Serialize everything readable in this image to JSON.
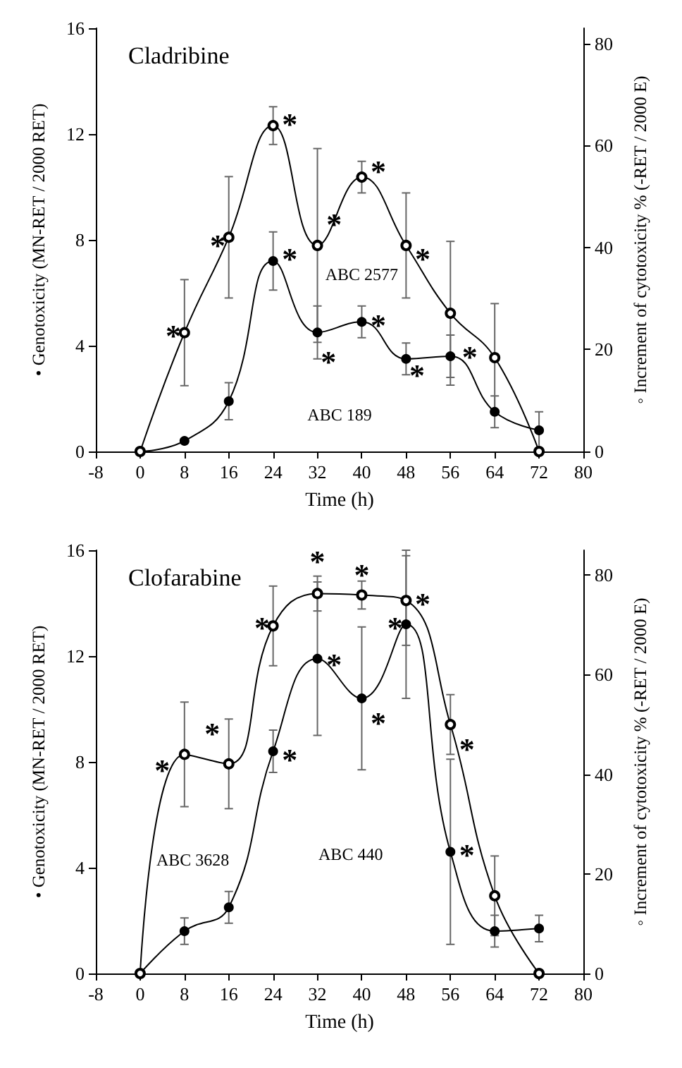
{
  "chart_data": [
    {
      "type": "line",
      "title": "Cladribine",
      "xlabel": "Time (h)",
      "ylabel": "• Genotoxicity (MN-RET / 2000 RET)",
      "y2label": "◦ Increment of cytotoxicity % (-RET / 2000 E)",
      "x": [
        0,
        8,
        16,
        24,
        32,
        40,
        48,
        56,
        64,
        72
      ],
      "series": [
        {
          "color": "#000000",
          "values": [
            0,
            0.4,
            1.9,
            7.2,
            4.5,
            4.9,
            3.5,
            3.6,
            1.5,
            0.8
          ],
          "errors": [
            null,
            null,
            0.7,
            1.1,
            1.0,
            0.6,
            0.6,
            0.8,
            0.6,
            0.7
          ]
        },
        {
          "color": "#000000",
          "axis": "y2",
          "values": [
            0,
            23.3,
            42.0,
            63.9,
            40.4,
            53.8,
            40.4,
            27.1,
            18.4,
            0
          ],
          "errors": [
            null,
            10.4,
            11.9,
            3.7,
            19,
            3.1,
            10.3,
            14.1,
            10.6,
            null
          ]
        }
      ],
      "xlim": [
        -8,
        80
      ],
      "xticks": [
        -8,
        0,
        8,
        16,
        24,
        32,
        40,
        48,
        56,
        64,
        72,
        80
      ],
      "ylim": [
        0,
        16
      ],
      "yticks": [
        0,
        4,
        8,
        12,
        16
      ],
      "y2lim": [
        0,
        83
      ],
      "y2ticks": [
        0,
        20,
        40,
        60,
        80
      ],
      "marker": "circle",
      "grid": false,
      "annotations": [
        "*",
        "*",
        "*",
        "*",
        "*",
        "*",
        "*",
        "*",
        "*",
        "*",
        "*",
        "ABC 2577",
        "ABC 189"
      ]
    },
    {
      "type": "line",
      "title": "Clofarabine",
      "xlabel": "Time (h)",
      "ylabel": "• Genotoxicity (MN-RET / 2000 RET)",
      "y2label": "◦ Increment of cytotoxicity % (-RET / 2000 E)",
      "x": [
        0,
        8,
        16,
        24,
        32,
        40,
        48,
        56,
        64,
        72
      ],
      "series": [
        {
          "color": "#000000",
          "values": [
            0,
            1.6,
            2.5,
            8.4,
            11.9,
            10.4,
            13.2,
            4.6,
            1.6,
            1.7
          ],
          "errors": [
            null,
            0.5,
            0.6,
            0.8,
            2.9,
            2.7,
            2.8,
            3.5,
            0.6,
            0.5
          ]
        },
        {
          "color": "#000000",
          "axis": "y2",
          "values": [
            0,
            44.0,
            42.1,
            69.8,
            76.3,
            76.0,
            74.9,
            50.0,
            15.6,
            0
          ],
          "errors": [
            null,
            10.5,
            9,
            8,
            3.5,
            2.8,
            9,
            6,
            8,
            null
          ]
        }
      ],
      "xlim": [
        -8,
        80
      ],
      "xticks": [
        -8,
        0,
        8,
        16,
        24,
        32,
        40,
        48,
        56,
        64,
        72,
        80
      ],
      "ylim": [
        0,
        16
      ],
      "yticks": [
        0,
        4,
        8,
        12,
        16
      ],
      "y2lim": [
        0,
        85
      ],
      "y2ticks": [
        0,
        20,
        40,
        60,
        80
      ],
      "marker": "circle",
      "grid": false,
      "annotations": [
        "*",
        "*",
        "*",
        "*",
        "*",
        "*",
        "*",
        "*",
        "*",
        "*",
        "*",
        "*",
        "ABC 3628",
        "ABC 440"
      ]
    }
  ]
}
